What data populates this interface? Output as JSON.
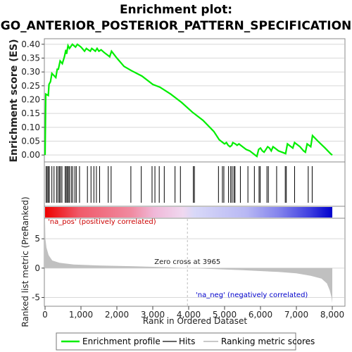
{
  "chart_data": {
    "type": "line",
    "title_line1": "Enrichment plot:",
    "title_line2": "GO_ANTERIOR_POSTERIOR_PATTERN_SPECIFICATION",
    "es_ylabel": "Enrichment score (ES)",
    "metric_ylabel": "Ranked list metric (PreRanked)",
    "xlabel": "Rank in Ordered Dataset",
    "x_ticks": [
      "0",
      "1,000",
      "2,000",
      "3,000",
      "4,000",
      "5,000",
      "6,000",
      "7,000",
      "8,000"
    ],
    "x_tick_values": [
      0,
      1000,
      2000,
      3000,
      4000,
      5000,
      6000,
      7000,
      8000
    ],
    "xlim": [
      0,
      8000
    ],
    "es_ylim": [
      -0.025,
      0.42
    ],
    "es_ticks": [
      "0.00",
      "0.05",
      "0.10",
      "0.15",
      "0.20",
      "0.25",
      "0.30",
      "0.35",
      "0.40"
    ],
    "es_tick_values": [
      0,
      0.05,
      0.1,
      0.15,
      0.2,
      0.25,
      0.3,
      0.35,
      0.4
    ],
    "metric_ylim": [
      -6.5,
      8.5
    ],
    "metric_ticks": [
      "-5",
      "0",
      "5"
    ],
    "metric_tick_values": [
      -5,
      0,
      5
    ],
    "zero_cross_label": "Zero cross at 3965",
    "zero_cross_rank": 3965,
    "pos_label": "'na_pos' (positively correlated)",
    "neg_label": "'na_neg' (negatively correlated)",
    "enrichment_profile": [
      [
        0,
        0.0
      ],
      [
        20,
        0.22
      ],
      [
        90,
        0.215
      ],
      [
        110,
        0.255
      ],
      [
        150,
        0.265
      ],
      [
        190,
        0.295
      ],
      [
        300,
        0.28
      ],
      [
        340,
        0.31
      ],
      [
        370,
        0.31
      ],
      [
        420,
        0.34
      ],
      [
        480,
        0.33
      ],
      [
        540,
        0.355
      ],
      [
        580,
        0.38
      ],
      [
        600,
        0.365
      ],
      [
        640,
        0.395
      ],
      [
        680,
        0.385
      ],
      [
        760,
        0.4
      ],
      [
        850,
        0.39
      ],
      [
        900,
        0.4
      ],
      [
        1000,
        0.39
      ],
      [
        1100,
        0.375
      ],
      [
        1150,
        0.385
      ],
      [
        1200,
        0.38
      ],
      [
        1260,
        0.375
      ],
      [
        1300,
        0.385
      ],
      [
        1350,
        0.38
      ],
      [
        1400,
        0.375
      ],
      [
        1450,
        0.385
      ],
      [
        1500,
        0.375
      ],
      [
        1560,
        0.38
      ],
      [
        1650,
        0.37
      ],
      [
        1750,
        0.36
      ],
      [
        1800,
        0.355
      ],
      [
        1850,
        0.375
      ],
      [
        2000,
        0.35
      ],
      [
        2200,
        0.32
      ],
      [
        2400,
        0.305
      ],
      [
        2700,
        0.285
      ],
      [
        3000,
        0.255
      ],
      [
        3200,
        0.245
      ],
      [
        3500,
        0.22
      ],
      [
        3800,
        0.19
      ],
      [
        4100,
        0.155
      ],
      [
        4400,
        0.125
      ],
      [
        4700,
        0.085
      ],
      [
        4850,
        0.055
      ],
      [
        4950,
        0.045
      ],
      [
        5000,
        0.04
      ],
      [
        5050,
        0.045
      ],
      [
        5100,
        0.035
      ],
      [
        5150,
        0.03
      ],
      [
        5200,
        0.035
      ],
      [
        5230,
        0.045
      ],
      [
        5300,
        0.04
      ],
      [
        5350,
        0.035
      ],
      [
        5400,
        0.04
      ],
      [
        5450,
        0.035
      ],
      [
        5500,
        0.03
      ],
      [
        5600,
        0.02
      ],
      [
        5700,
        0.015
      ],
      [
        5800,
        0.005
      ],
      [
        5850,
        0.0
      ],
      [
        5900,
        -0.005
      ],
      [
        5950,
        0.02
      ],
      [
        6000,
        0.025
      ],
      [
        6050,
        0.015
      ],
      [
        6100,
        0.01
      ],
      [
        6150,
        0.02
      ],
      [
        6200,
        0.03
      ],
      [
        6250,
        0.025
      ],
      [
        6300,
        0.015
      ],
      [
        6350,
        0.03
      ],
      [
        6400,
        0.025
      ],
      [
        6500,
        0.015
      ],
      [
        6600,
        0.01
      ],
      [
        6700,
        0.005
      ],
      [
        6750,
        0.04
      ],
      [
        6800,
        0.035
      ],
      [
        6900,
        0.025
      ],
      [
        6950,
        0.045
      ],
      [
        7100,
        0.03
      ],
      [
        7200,
        0.015
      ],
      [
        7250,
        0.01
      ],
      [
        7300,
        0.04
      ],
      [
        7400,
        0.03
      ],
      [
        7450,
        0.07
      ],
      [
        7600,
        0.05
      ],
      [
        7800,
        0.025
      ],
      [
        7950,
        0.005
      ],
      [
        8000,
        0.0
      ]
    ],
    "hits": [
      30,
      60,
      90,
      120,
      190,
      250,
      320,
      360,
      400,
      430,
      470,
      560,
      590,
      620,
      650,
      680,
      730,
      770,
      830,
      870,
      960,
      1180,
      1280,
      1360,
      1430,
      1520,
      1760,
      1840,
      2390,
      2680,
      2980,
      3060,
      3180,
      3320,
      3620,
      3770,
      4130,
      4160,
      4830,
      4940,
      4980,
      5110,
      5170,
      5210,
      5260,
      5290,
      5440,
      5650,
      5830,
      5960,
      5990,
      6180,
      6220,
      6450,
      6690,
      6720,
      6950,
      7330,
      7440
    ],
    "metric_curve": [
      [
        0,
        8.0
      ],
      [
        10,
        5.0
      ],
      [
        40,
        3.5
      ],
      [
        100,
        2.2
      ],
      [
        200,
        1.3
      ],
      [
        400,
        0.9
      ],
      [
        800,
        0.6
      ],
      [
        1500,
        0.45
      ],
      [
        2500,
        0.3
      ],
      [
        3500,
        0.12
      ],
      [
        3965,
        0.0
      ],
      [
        4500,
        -0.12
      ],
      [
        5500,
        -0.35
      ],
      [
        6500,
        -0.65
      ],
      [
        7000,
        -0.9
      ],
      [
        7400,
        -1.3
      ],
      [
        7700,
        -1.8
      ],
      [
        7850,
        -2.6
      ],
      [
        7930,
        -3.8
      ],
      [
        7980,
        -5.0
      ],
      [
        8000,
        -6.0
      ]
    ],
    "legend": {
      "enrichment": "Enrichment profile",
      "hits": "Hits",
      "ranking": "Ranking metric scores"
    },
    "colors": {
      "profile": "#00ee00",
      "hits": "#000000",
      "metric_fill": "#c0c0c0",
      "pos_red": "#ee0000",
      "neg_blue": "#0000cc",
      "zero_line": "#bbbbbb",
      "grid": "#d8d8d8"
    }
  }
}
